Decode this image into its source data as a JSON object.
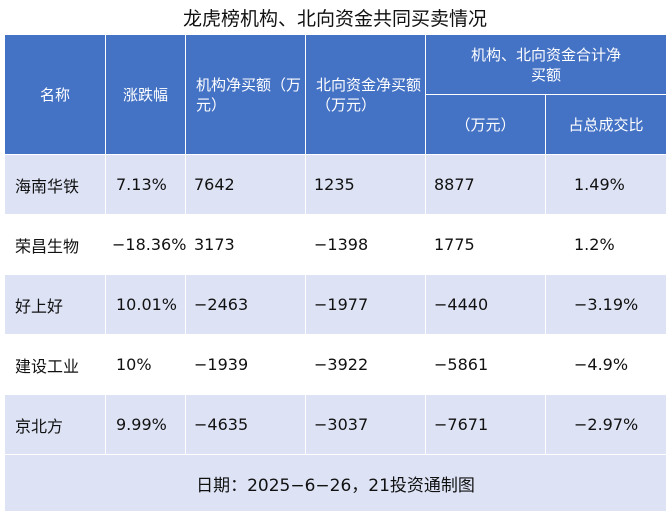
{
  "title": "龙虎榜机构、北向资金共同买卖情况",
  "headers": {
    "name": "名称",
    "change": "涨跌幅",
    "inst": "机构净买额（万元）",
    "north": "北向资金净买额（万元）",
    "combined_group": "机构、北向资金合计净买额",
    "combined_amount": "（万元）",
    "combined_share": "占总成交比"
  },
  "rows": [
    {
      "name": "海南华铁",
      "change": "7.13%",
      "inst": "7642",
      "north": "1235",
      "combined": "8877",
      "share": "1.49%"
    },
    {
      "name": "荣昌生物",
      "change": "−18.36%",
      "inst": "3173",
      "north": "−1398",
      "combined": "1775",
      "share": "1.2%"
    },
    {
      "name": "好上好",
      "change": "10.01%",
      "inst": "−2463",
      "north": "−1977",
      "combined": "−4440",
      "share": "−3.19%"
    },
    {
      "name": "建设工业",
      "change": "10%",
      "inst": "−1939",
      "north": "−3922",
      "combined": "−5861",
      "share": "−4.9%"
    },
    {
      "name": "京北方",
      "change": "9.99%",
      "inst": "−4635",
      "north": "−3037",
      "combined": "−7671",
      "share": "−2.97%"
    }
  ],
  "footer": "日期：2025−6−26，21投资通制图",
  "colors": {
    "header": "#4472c4",
    "stripe": "#dde3f5"
  }
}
